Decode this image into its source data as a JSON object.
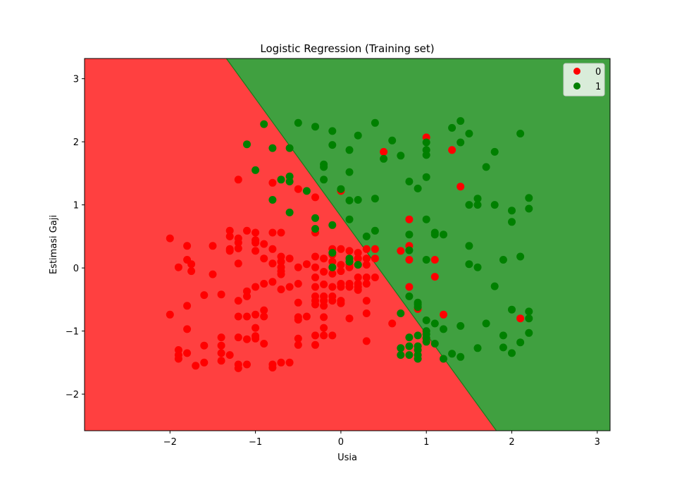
{
  "chart_data": {
    "type": "scatter",
    "title": "Logistic Regression (Training set)",
    "xlabel": "Usia",
    "ylabel": "Estimasi Gaji",
    "xlim": [
      -3.0,
      3.15
    ],
    "ylim": [
      -2.58,
      3.32
    ],
    "xticks": [
      -2,
      -1,
      0,
      1,
      2,
      3
    ],
    "yticks": [
      -2,
      -1,
      0,
      1,
      2,
      3
    ],
    "grid": false,
    "legend_position": "upper right",
    "legend": [
      {
        "label": "0",
        "color": "#ff0000"
      },
      {
        "label": "1",
        "color": "#008000"
      }
    ],
    "decision_regions": {
      "class_0_color": "#ff4040",
      "class_1_color": "#40a040",
      "boundary_line": {
        "x_at_top": -1.34,
        "y_top": 3.32,
        "x_at_bottom": 1.82,
        "y_bottom": -2.58
      }
    },
    "series": [
      {
        "name": "0",
        "color": "#ff0000",
        "points": [
          [
            -2.0,
            0.47
          ],
          [
            -2.0,
            -0.74
          ],
          [
            -1.9,
            0.01
          ],
          [
            -1.9,
            -1.3
          ],
          [
            -1.9,
            -1.38
          ],
          [
            -1.9,
            -1.44
          ],
          [
            -1.8,
            0.35
          ],
          [
            -1.8,
            0.13
          ],
          [
            -1.8,
            -0.6
          ],
          [
            -1.8,
            -0.97
          ],
          [
            -1.8,
            -1.35
          ],
          [
            -1.75,
            0.06
          ],
          [
            -1.75,
            -0.05
          ],
          [
            -1.7,
            -1.55
          ],
          [
            -1.6,
            -0.43
          ],
          [
            -1.6,
            -1.23
          ],
          [
            -1.6,
            -1.5
          ],
          [
            -1.5,
            0.35
          ],
          [
            -1.5,
            -0.1
          ],
          [
            -1.4,
            -0.42
          ],
          [
            -1.4,
            -1.1
          ],
          [
            -1.4,
            -1.23
          ],
          [
            -1.4,
            -1.35
          ],
          [
            -1.4,
            -1.47
          ],
          [
            -1.3,
            0.59
          ],
          [
            -1.3,
            0.5
          ],
          [
            -1.3,
            0.3
          ],
          [
            -1.3,
            0.27
          ],
          [
            -1.3,
            -1.38
          ],
          [
            -1.2,
            1.4
          ],
          [
            -1.2,
            0.47
          ],
          [
            -1.2,
            0.4
          ],
          [
            -1.2,
            0.31
          ],
          [
            -1.2,
            0.07
          ],
          [
            -1.2,
            -0.52
          ],
          [
            -1.2,
            -0.77
          ],
          [
            -1.2,
            -1.1
          ],
          [
            -1.2,
            -1.53
          ],
          [
            -1.2,
            -1.59
          ],
          [
            -1.1,
            0.59
          ],
          [
            -1.1,
            -0.37
          ],
          [
            -1.1,
            -0.45
          ],
          [
            -1.1,
            -0.77
          ],
          [
            -1.1,
            -1.13
          ],
          [
            -1.1,
            -1.53
          ],
          [
            -1.0,
            0.56
          ],
          [
            -1.0,
            0.44
          ],
          [
            -1.0,
            0.4
          ],
          [
            -1.0,
            0.27
          ],
          [
            -1.0,
            -0.3
          ],
          [
            -1.0,
            -0.74
          ],
          [
            -1.0,
            -0.95
          ],
          [
            -1.0,
            -1.08
          ],
          [
            -1.0,
            -1.12
          ],
          [
            -0.9,
            0.38
          ],
          [
            -0.9,
            0.15
          ],
          [
            -0.9,
            -0.25
          ],
          [
            -0.9,
            -0.67
          ],
          [
            -0.9,
            -0.77
          ],
          [
            -0.9,
            -1.2
          ],
          [
            -0.8,
            1.35
          ],
          [
            -0.8,
            0.56
          ],
          [
            -0.8,
            0.3
          ],
          [
            -0.8,
            0.07
          ],
          [
            -0.8,
            -0.22
          ],
          [
            -0.8,
            -1.53
          ],
          [
            -0.8,
            -1.58
          ],
          [
            -0.7,
            0.56
          ],
          [
            -0.7,
            0.18
          ],
          [
            -0.7,
            0.1
          ],
          [
            -0.7,
            0.01
          ],
          [
            -0.7,
            -0.05
          ],
          [
            -0.7,
            -0.1
          ],
          [
            -0.7,
            -0.34
          ],
          [
            -0.7,
            -1.5
          ],
          [
            -0.6,
            0.15
          ],
          [
            -0.6,
            -0.3
          ],
          [
            -0.6,
            -1.5
          ],
          [
            -0.5,
            1.25
          ],
          [
            -0.5,
            0.01
          ],
          [
            -0.5,
            -0.25
          ],
          [
            -0.5,
            -0.55
          ],
          [
            -0.5,
            -0.78
          ],
          [
            -0.5,
            -0.82
          ],
          [
            -0.5,
            -1.12
          ],
          [
            -0.5,
            -1.22
          ],
          [
            -0.4,
            0.06
          ],
          [
            -0.4,
            -0.77
          ],
          [
            -0.3,
            1.12
          ],
          [
            -0.3,
            0.56
          ],
          [
            -0.3,
            0.18
          ],
          [
            -0.3,
            0.01
          ],
          [
            -0.3,
            -0.15
          ],
          [
            -0.3,
            -0.3
          ],
          [
            -0.3,
            -0.45
          ],
          [
            -0.3,
            -0.52
          ],
          [
            -0.3,
            -0.58
          ],
          [
            -0.3,
            -1.07
          ],
          [
            -0.3,
            -1.22
          ],
          [
            -0.2,
            0.15
          ],
          [
            -0.2,
            -0.06
          ],
          [
            -0.2,
            -0.26
          ],
          [
            -0.2,
            -0.45
          ],
          [
            -0.2,
            -0.52
          ],
          [
            -0.2,
            -0.6
          ],
          [
            -0.2,
            -0.78
          ],
          [
            -0.2,
            -0.95
          ],
          [
            -0.2,
            -1.07
          ],
          [
            -0.1,
            0.3
          ],
          [
            -0.1,
            0.21
          ],
          [
            -0.1,
            0.1
          ],
          [
            -0.1,
            -0.09
          ],
          [
            -0.1,
            -0.3
          ],
          [
            -0.1,
            -0.45
          ],
          [
            -0.1,
            -0.52
          ],
          [
            -0.1,
            -1.07
          ],
          [
            0.0,
            1.22
          ],
          [
            0.0,
            0.3
          ],
          [
            0.0,
            0.05
          ],
          [
            0.0,
            -0.05
          ],
          [
            0.0,
            -0.25
          ],
          [
            0.0,
            -0.3
          ],
          [
            0.0,
            -0.52
          ],
          [
            0.0,
            -0.56
          ],
          [
            0.1,
            0.27
          ],
          [
            0.1,
            0.15
          ],
          [
            0.1,
            0.05
          ],
          [
            0.1,
            0.01
          ],
          [
            0.1,
            -0.25
          ],
          [
            0.1,
            -0.3
          ],
          [
            0.1,
            -0.8
          ],
          [
            0.2,
            0.24
          ],
          [
            0.2,
            0.15
          ],
          [
            0.2,
            0.05
          ],
          [
            0.2,
            -0.15
          ],
          [
            0.2,
            -0.25
          ],
          [
            0.2,
            -0.3
          ],
          [
            0.2,
            -0.35
          ],
          [
            0.3,
            0.3
          ],
          [
            0.3,
            0.15
          ],
          [
            0.3,
            0.05
          ],
          [
            0.3,
            -0.15
          ],
          [
            0.3,
            -0.25
          ],
          [
            0.3,
            -0.52
          ],
          [
            0.3,
            -0.72
          ],
          [
            0.3,
            -1.16
          ],
          [
            0.4,
            0.3
          ],
          [
            0.4,
            0.15
          ],
          [
            0.4,
            -0.15
          ],
          [
            0.5,
            1.84
          ],
          [
            0.6,
            -0.88
          ],
          [
            0.7,
            0.27
          ],
          [
            0.8,
            0.77
          ],
          [
            0.8,
            0.35
          ],
          [
            0.8,
            0.13
          ],
          [
            0.8,
            -0.3
          ],
          [
            0.9,
            -0.65
          ],
          [
            1.0,
            2.07
          ],
          [
            1.0,
            -1.12
          ],
          [
            1.1,
            0.13
          ],
          [
            1.1,
            -0.14
          ],
          [
            1.2,
            -0.74
          ],
          [
            1.3,
            1.87
          ],
          [
            1.4,
            1.29
          ],
          [
            2.1,
            -0.8
          ]
        ]
      },
      {
        "name": "1",
        "color": "#008000",
        "points": [
          [
            -1.1,
            1.96
          ],
          [
            -1.0,
            1.55
          ],
          [
            -0.9,
            2.28
          ],
          [
            -0.8,
            1.9
          ],
          [
            -0.8,
            1.08
          ],
          [
            -0.7,
            1.4
          ],
          [
            -0.6,
            1.9
          ],
          [
            -0.6,
            1.45
          ],
          [
            -0.6,
            1.37
          ],
          [
            -0.6,
            0.88
          ],
          [
            -0.5,
            2.3
          ],
          [
            -0.4,
            1.22
          ],
          [
            -0.3,
            2.24
          ],
          [
            -0.3,
            0.79
          ],
          [
            -0.3,
            0.62
          ],
          [
            -0.2,
            1.64
          ],
          [
            -0.2,
            1.6
          ],
          [
            -0.2,
            1.4
          ],
          [
            -0.1,
            2.17
          ],
          [
            -0.1,
            1.95
          ],
          [
            -0.1,
            0.68
          ],
          [
            -0.1,
            0.24
          ],
          [
            -0.1,
            0.01
          ],
          [
            0.0,
            1.25
          ],
          [
            0.1,
            1.87
          ],
          [
            0.1,
            1.52
          ],
          [
            0.1,
            1.07
          ],
          [
            0.1,
            0.77
          ],
          [
            0.1,
            0.15
          ],
          [
            0.1,
            0.1
          ],
          [
            0.2,
            2.1
          ],
          [
            0.2,
            1.08
          ],
          [
            0.2,
            0.05
          ],
          [
            0.3,
            0.5
          ],
          [
            0.4,
            2.3
          ],
          [
            0.4,
            1.1
          ],
          [
            0.4,
            0.59
          ],
          [
            0.5,
            1.73
          ],
          [
            0.6,
            2.02
          ],
          [
            0.7,
            1.78
          ],
          [
            0.7,
            -0.72
          ],
          [
            0.7,
            -1.27
          ],
          [
            0.7,
            -1.38
          ],
          [
            0.8,
            1.37
          ],
          [
            0.8,
            0.53
          ],
          [
            0.8,
            0.28
          ],
          [
            0.8,
            -0.45
          ],
          [
            0.8,
            -1.1
          ],
          [
            0.8,
            -1.24
          ],
          [
            0.8,
            -1.38
          ],
          [
            0.9,
            1.26
          ],
          [
            0.9,
            -0.55
          ],
          [
            0.9,
            -0.58
          ],
          [
            0.9,
            -0.62
          ],
          [
            0.9,
            -1.07
          ],
          [
            0.9,
            -1.24
          ],
          [
            0.9,
            -1.3
          ],
          [
            0.9,
            -1.38
          ],
          [
            0.9,
            -1.44
          ],
          [
            1.0,
            1.99
          ],
          [
            1.0,
            1.87
          ],
          [
            1.0,
            1.79
          ],
          [
            1.0,
            1.44
          ],
          [
            1.0,
            0.77
          ],
          [
            1.0,
            0.13
          ],
          [
            1.0,
            -0.83
          ],
          [
            1.0,
            -1.0
          ],
          [
            1.0,
            -1.05
          ],
          [
            1.0,
            -1.11
          ],
          [
            1.0,
            -1.17
          ],
          [
            1.1,
            0.56
          ],
          [
            1.1,
            0.53
          ],
          [
            1.1,
            -0.88
          ],
          [
            1.1,
            -1.2
          ],
          [
            1.2,
            0.53
          ],
          [
            1.2,
            -0.97
          ],
          [
            1.2,
            -1.44
          ],
          [
            1.3,
            2.22
          ],
          [
            1.3,
            -1.36
          ],
          [
            1.4,
            2.33
          ],
          [
            1.4,
            1.99
          ],
          [
            1.4,
            -0.92
          ],
          [
            1.4,
            -1.41
          ],
          [
            1.5,
            2.13
          ],
          [
            1.5,
            1.0
          ],
          [
            1.5,
            0.35
          ],
          [
            1.5,
            0.06
          ],
          [
            1.6,
            1.1
          ],
          [
            1.6,
            1.0
          ],
          [
            1.6,
            0.01
          ],
          [
            1.6,
            -1.27
          ],
          [
            1.7,
            1.6
          ],
          [
            1.7,
            -0.88
          ],
          [
            1.8,
            1.84
          ],
          [
            1.8,
            1.0
          ],
          [
            1.8,
            -0.29
          ],
          [
            1.9,
            0.13
          ],
          [
            1.9,
            -1.07
          ],
          [
            1.9,
            -1.26
          ],
          [
            2.0,
            0.91
          ],
          [
            2.0,
            0.73
          ],
          [
            2.0,
            -0.66
          ],
          [
            2.0,
            -1.35
          ],
          [
            2.1,
            2.13
          ],
          [
            2.1,
            0.18
          ],
          [
            2.1,
            -1.18
          ],
          [
            2.2,
            1.11
          ],
          [
            2.2,
            0.94
          ],
          [
            2.2,
            -0.69
          ],
          [
            2.2,
            -0.8
          ],
          [
            2.2,
            -1.03
          ]
        ]
      }
    ]
  }
}
